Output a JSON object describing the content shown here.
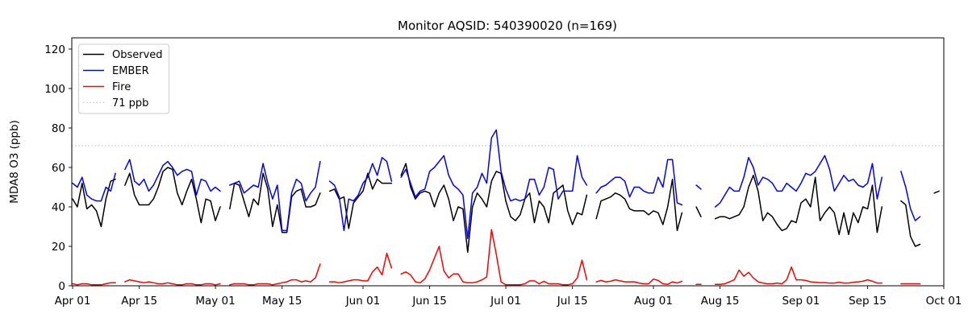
{
  "figure": {
    "title": "Monitor AQSID: 540390020 (n=169)"
  },
  "axes": {
    "ylabel": "MDA8 O3 (ppb)",
    "ylim": [
      0,
      125.7
    ],
    "y_ticks": [
      0,
      20,
      40,
      60,
      80,
      100,
      120
    ],
    "x_tick_days": [
      0,
      14,
      30,
      44,
      61,
      75,
      91,
      105,
      122,
      136,
      153,
      167,
      183
    ],
    "x_tick_labels": [
      "Apr 01",
      "Apr 15",
      "May 01",
      "May 15",
      "Jun 01",
      "Jun 15",
      "Jul 01",
      "Jul 15",
      "Aug 01",
      "Aug 15",
      "Sep 01",
      "Sep 15",
      "Oct 01"
    ],
    "n_days": 183,
    "frame_color": "#000000"
  },
  "threshold": {
    "value": 71,
    "label": "71 ppb",
    "color": "#c8c8c8"
  },
  "legend": {
    "items": [
      {
        "label": "Observed",
        "color": "#000000",
        "style": "solid"
      },
      {
        "label": "EMBER",
        "color": "#0000ff",
        "style": "solid"
      },
      {
        "label": "Fire",
        "color": "#ff0000",
        "style": "solid"
      },
      {
        "label": "71 ppb",
        "color": "#c8c8c8",
        "style": "dotted"
      }
    ]
  },
  "chart_data": {
    "type": "line",
    "title": "Monitor AQSID: 540390020 (n=169)",
    "xlabel": "",
    "ylabel": "MDA8 O3 (ppb)",
    "x_unit": "days since Apr 01 (daily MDA8 ozone)",
    "x_start": "Apr 01",
    "x_end": "Oct 01",
    "grid": false,
    "legend_position": "upper left",
    "threshold_line": {
      "value": 71,
      "label": "71 ppb"
    },
    "series": [
      {
        "name": "Observed",
        "color": "#000000",
        "values": [
          44,
          40,
          52,
          39,
          41,
          38,
          30,
          44,
          53,
          54,
          null,
          51,
          57,
          46,
          41,
          41,
          41,
          44,
          50,
          58,
          60,
          59,
          47,
          41,
          48,
          54,
          44,
          32,
          44,
          43,
          33,
          40,
          null,
          39,
          52,
          51,
          43,
          35,
          44,
          41,
          57,
          49,
          30,
          41,
          27,
          27,
          45,
          48,
          49,
          40,
          40,
          41,
          47,
          null,
          48,
          49,
          44,
          45,
          29,
          42,
          45,
          48,
          57,
          49,
          54,
          52,
          52,
          52,
          null,
          56,
          62,
          50,
          44,
          47,
          48,
          47,
          40,
          47,
          51,
          44,
          33,
          40,
          39,
          17,
          40,
          47,
          44,
          40,
          53,
          58,
          57,
          43,
          35,
          33,
          36,
          44,
          47,
          32,
          43,
          40,
          32,
          47,
          49,
          51,
          38,
          31,
          37,
          36,
          46,
          null,
          34,
          43,
          44,
          45,
          47,
          46,
          44,
          39,
          38,
          38,
          38,
          36,
          38,
          37,
          31,
          40,
          54,
          28,
          37,
          null,
          null,
          40,
          35,
          null,
          null,
          34,
          35,
          35,
          34,
          35,
          36,
          40,
          50,
          56,
          48,
          33,
          37,
          35,
          31,
          28,
          29,
          33,
          32,
          42,
          44,
          40,
          55,
          33,
          37,
          40,
          37,
          26,
          37,
          26,
          37,
          32,
          40,
          39,
          51,
          27,
          40,
          null,
          null,
          null,
          43,
          41,
          25,
          20,
          21,
          null,
          null,
          47,
          48
        ]
      },
      {
        "name": "EMBER",
        "color": "#0000ff",
        "values": [
          52,
          50,
          55,
          46,
          44,
          43,
          43,
          50,
          48,
          57,
          null,
          59,
          64,
          53,
          51,
          54,
          48,
          51,
          56,
          61,
          63,
          60,
          56,
          58,
          59,
          58,
          46,
          54,
          53,
          48,
          50,
          48,
          null,
          51,
          52,
          53,
          47,
          49,
          51,
          50,
          62,
          52,
          44,
          51,
          28,
          28,
          47,
          54,
          52,
          43,
          47,
          50,
          63,
          null,
          53,
          51,
          45,
          28,
          44,
          43,
          46,
          52,
          55,
          62,
          56,
          65,
          63,
          53,
          null,
          55,
          59,
          52,
          45,
          48,
          49,
          58,
          60,
          63,
          66,
          56,
          51,
          49,
          46,
          24,
          47,
          50,
          57,
          52,
          75,
          79,
          58,
          49,
          43,
          44,
          43,
          44,
          54,
          54,
          46,
          50,
          60,
          59,
          44,
          48,
          48,
          48,
          66,
          55,
          51,
          null,
          47,
          50,
          51,
          53,
          55,
          55,
          53,
          45,
          50,
          50,
          48,
          47,
          47,
          55,
          50,
          64,
          64,
          42,
          41,
          null,
          null,
          51,
          49,
          null,
          null,
          40,
          42,
          46,
          50,
          48,
          48,
          55,
          65,
          60,
          51,
          55,
          54,
          52,
          48,
          48,
          52,
          50,
          48,
          52,
          57,
          56,
          58,
          62,
          66,
          59,
          48,
          52,
          56,
          53,
          54,
          51,
          50,
          52,
          62,
          44,
          55,
          null,
          null,
          null,
          58,
          50,
          39,
          33,
          35,
          null,
          null,
          null,
          null
        ]
      },
      {
        "name": "Fire",
        "color": "#ff0000",
        "values": [
          1,
          0.5,
          1,
          1,
          0.5,
          0.5,
          0.5,
          1,
          1.5,
          1.5,
          null,
          2,
          3,
          2.5,
          2,
          1.5,
          2,
          1.5,
          1,
          1,
          1.5,
          1,
          0.5,
          0.5,
          1,
          1,
          0.5,
          0.5,
          1,
          1,
          0.5,
          1,
          null,
          0.5,
          1,
          1,
          1,
          0.5,
          0.5,
          1,
          1,
          1,
          0.5,
          1,
          1.5,
          2,
          3,
          3,
          2,
          2.5,
          2,
          4,
          11,
          null,
          2,
          2,
          1.5,
          2,
          2.5,
          3,
          3,
          2.5,
          2.5,
          7,
          9.5,
          5.5,
          16.5,
          9,
          null,
          6,
          7,
          5.5,
          2,
          1.5,
          3.5,
          8,
          14,
          20,
          7.5,
          4,
          6,
          6,
          2,
          1.5,
          1.5,
          2,
          3,
          4.5,
          28.5,
          16,
          2,
          0.5,
          0.5,
          0.5,
          0.5,
          1,
          2.5,
          2.5,
          1,
          2.3,
          1,
          1,
          1,
          0.5,
          0.5,
          1,
          4,
          13,
          3,
          null,
          2,
          2.7,
          2,
          2.3,
          3,
          2.5,
          2,
          2,
          2,
          1.4,
          1,
          1,
          3.4,
          2.7,
          1,
          0.7,
          2,
          1.4,
          2.3,
          null,
          null,
          0.7,
          0.7,
          null,
          null,
          0.7,
          0.7,
          1,
          2,
          3,
          8,
          4.8,
          6.8,
          4,
          2,
          1.4,
          1,
          1,
          1.4,
          1,
          3,
          9.5,
          3,
          3,
          2.7,
          2,
          1.8,
          1.6,
          1.6,
          1.4,
          1.4,
          1.8,
          1.4,
          1.4,
          1.8,
          2,
          2.3,
          3,
          2.3,
          1.4,
          1.4,
          null,
          null,
          null,
          1,
          1,
          1,
          1,
          1,
          null,
          null,
          null,
          null
        ]
      }
    ]
  }
}
